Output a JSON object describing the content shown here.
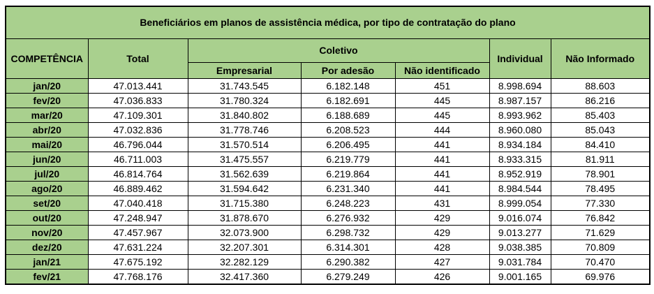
{
  "chart_data": {
    "type": "table",
    "title": "Beneficiários em planos de assistência médica, por tipo de contratação do plano",
    "header": {
      "competencia": "COMPETÊNCIA",
      "total": "Total",
      "coletivo_group": "Coletivo",
      "empresarial": "Empresarial",
      "por_adesao": "Por adesão",
      "nao_identificado": "Não identificado",
      "individual": "Individual",
      "nao_informado": "Não Informado"
    },
    "columns": [
      "COMPETÊNCIA",
      "Total",
      "Empresarial",
      "Por adesão",
      "Não identificado",
      "Individual",
      "Não Informado"
    ],
    "rows": [
      [
        "jan/20",
        "47.013.441",
        "31.743.545",
        "6.182.148",
        "451",
        "8.998.694",
        "88.603"
      ],
      [
        "fev/20",
        "47.036.833",
        "31.780.324",
        "6.182.691",
        "445",
        "8.987.157",
        "86.216"
      ],
      [
        "mar/20",
        "47.109.301",
        "31.840.802",
        "6.188.689",
        "445",
        "8.993.962",
        "85.403"
      ],
      [
        "abr/20",
        "47.032.836",
        "31.778.746",
        "6.208.523",
        "444",
        "8.960.080",
        "85.043"
      ],
      [
        "mai/20",
        "46.796.044",
        "31.570.514",
        "6.206.495",
        "441",
        "8.934.184",
        "84.410"
      ],
      [
        "jun/20",
        "46.711.003",
        "31.475.557",
        "6.219.779",
        "441",
        "8.933.315",
        "81.911"
      ],
      [
        "jul/20",
        "46.814.764",
        "31.562.639",
        "6.219.864",
        "441",
        "8.952.919",
        "78.901"
      ],
      [
        "ago/20",
        "46.889.462",
        "31.594.642",
        "6.231.340",
        "441",
        "8.984.544",
        "78.495"
      ],
      [
        "set/20",
        "47.040.418",
        "31.715.380",
        "6.248.223",
        "431",
        "8.999.054",
        "77.330"
      ],
      [
        "out/20",
        "47.248.947",
        "31.878.670",
        "6.276.932",
        "429",
        "9.016.074",
        "76.842"
      ],
      [
        "nov/20",
        "47.457.967",
        "32.073.900",
        "6.298.732",
        "429",
        "9.013.277",
        "71.629"
      ],
      [
        "dez/20",
        "47.631.224",
        "32.207.301",
        "6.314.301",
        "428",
        "9.038.385",
        "70.809"
      ],
      [
        "jan/21",
        "47.675.192",
        "32.282.129",
        "6.290.382",
        "427",
        "9.031.784",
        "70.470"
      ],
      [
        "fev/21",
        "47.768.176",
        "32.417.360",
        "6.279.249",
        "426",
        "9.001.165",
        "69.976"
      ]
    ],
    "layout": {
      "header_bg_color": "#a9d08e",
      "body_bg_color": "#ffffff",
      "border_color": "#000000",
      "coletivo_subcolumns": [
        "Empresarial",
        "Por adesão",
        "Não identificado"
      ]
    }
  }
}
